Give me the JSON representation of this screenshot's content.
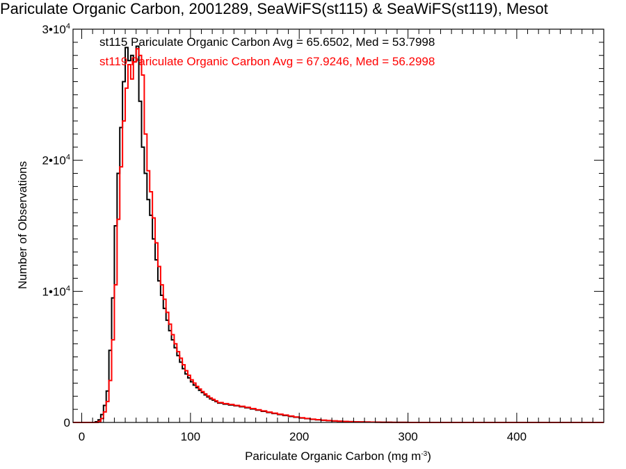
{
  "chart_data": {
    "type": "histogram",
    "title": "Pariculate Organic Carbon, 2001289, SeaWiFS(st115) & SeaWiFS(st119), Mesot",
    "xlabel": "Pariculate Organic Carbon (mg m",
    "xlabel_sup": "-3",
    "xlabel_end": ")",
    "ylabel": "Number of Observations",
    "xlim": [
      -8,
      480
    ],
    "ylim": [
      0,
      30000
    ],
    "xticks": [
      0,
      100,
      200,
      300,
      400
    ],
    "xtick_labels": [
      "0",
      "100",
      "200",
      "300",
      "400"
    ],
    "yticks": [
      0,
      10000,
      20000,
      30000
    ],
    "ytick_labels": [
      {
        "base": "0",
        "exp": ""
      },
      {
        "base": "1•10",
        "exp": "4"
      },
      {
        "base": "2•10",
        "exp": "4"
      },
      {
        "base": "3•10",
        "exp": "4"
      }
    ],
    "bin_edges": [
      10,
      12.5,
      15,
      17.5,
      20,
      22.5,
      25,
      27.5,
      30,
      32.5,
      35,
      37.5,
      40,
      42.5,
      45,
      47.5,
      50,
      52.5,
      55,
      57.5,
      60,
      62.5,
      65,
      67.5,
      70,
      72.5,
      75,
      77.5,
      80,
      82.5,
      85,
      87.5,
      90,
      92.5,
      95,
      97.5,
      100,
      102.5,
      105,
      107.5,
      110,
      112.5,
      115,
      117.5,
      120,
      122.5,
      125,
      130,
      135,
      140,
      145,
      150,
      155,
      160,
      165,
      170,
      175,
      180,
      185,
      190,
      195,
      200,
      205,
      210,
      215,
      220,
      225,
      230,
      235,
      240,
      245,
      250,
      255,
      260,
      265,
      270,
      275,
      280,
      285,
      290,
      295,
      300
    ],
    "series": [
      {
        "name": "st115",
        "color": "#000000",
        "legend": "st115 Pariculate Organic Carbon Avg = 65.6502, Med = 53.7998",
        "values": [
          0,
          50,
          200,
          600,
          1300,
          2400,
          5500,
          9500,
          15000,
          19000,
          22500,
          26000,
          28600,
          27600,
          28000,
          27500,
          28700,
          24500,
          21000,
          19000,
          17000,
          15800,
          14000,
          12400,
          10800,
          9700,
          8700,
          7800,
          7000,
          6300,
          5700,
          5100,
          4600,
          4100,
          3700,
          3400,
          3100,
          2850,
          2650,
          2450,
          2280,
          2100,
          1950,
          1800,
          1700,
          1600,
          1480,
          1400,
          1330,
          1270,
          1200,
          1120,
          1030,
          940,
          850,
          760,
          680,
          600,
          530,
          460,
          400,
          340,
          290,
          240,
          200,
          165,
          135,
          110,
          90,
          72,
          58,
          46,
          37,
          30,
          24,
          19,
          15,
          12,
          9,
          7,
          5
        ]
      },
      {
        "name": "st119",
        "color": "#ff0000",
        "legend": "st119 Pariculate Organic Carbon Avg = 67.9246, Med = 56.2998",
        "values": [
          0,
          0,
          80,
          300,
          800,
          1600,
          3200,
          6300,
          10500,
          15500,
          19500,
          23000,
          25500,
          27300,
          26200,
          27500,
          28500,
          28000,
          26500,
          22000,
          19200,
          17600,
          15600,
          13700,
          11900,
          10500,
          9400,
          8400,
          7500,
          6700,
          6000,
          5400,
          4900,
          4400,
          3950,
          3600,
          3250,
          3000,
          2750,
          2550,
          2350,
          2180,
          2020,
          1870,
          1760,
          1650,
          1520,
          1440,
          1370,
          1300,
          1230,
          1150,
          1060,
          970,
          880,
          790,
          710,
          630,
          560,
          490,
          420,
          360,
          305,
          255,
          210,
          175,
          145,
          118,
          95,
          77,
          62,
          49,
          39,
          31,
          25,
          20,
          16,
          12,
          9,
          7,
          5
        ]
      }
    ]
  }
}
